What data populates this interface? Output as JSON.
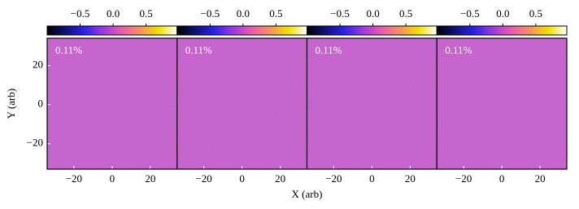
{
  "chart_data": [
    {
      "type": "heatmap",
      "annotation": "0.11%",
      "xlabel": "X (arb)",
      "ylabel": "Y (arb)",
      "xlim": [
        -34,
        34
      ],
      "xticks": [
        {
          "value": -20,
          "label": "−20"
        },
        0,
        20
      ],
      "ylim": [
        -33,
        34
      ],
      "yticks": [
        {
          "value": -20,
          "label": "−20"
        },
        0,
        20
      ],
      "clim": [
        -1.0,
        0.97
      ],
      "cticks": [
        {
          "value": -0.5,
          "label": "−0.5"
        },
        {
          "value": 0,
          "label": "0.0"
        },
        0.5
      ],
      "colormap": [
        "#000000",
        "#10107a",
        "#2a22e8",
        "#9a3ae0",
        "#e85ab0",
        "#f89060",
        "#f0e000",
        "#ffffff"
      ],
      "fill_color": "#b646c6"
    },
    {
      "type": "heatmap",
      "annotation": "0.11%",
      "xlim": [
        -34,
        34
      ],
      "xticks": [
        {
          "value": -20,
          "label": "−20"
        },
        0,
        20
      ],
      "clim": [
        -1.0,
        0.97
      ],
      "cticks": [
        {
          "value": -0.5,
          "label": "−0.5"
        },
        {
          "value": 0,
          "label": "0.0"
        },
        0.5
      ],
      "colormap": [
        "#000000",
        "#10107a",
        "#2a22e8",
        "#9a3ae0",
        "#e85ab0",
        "#f89060",
        "#f0e000",
        "#ffffff"
      ],
      "fill_color": "#b646c6"
    },
    {
      "type": "heatmap",
      "annotation": "0.11%",
      "xlim": [
        -34,
        34
      ],
      "xticks": [
        {
          "value": -20,
          "label": "−20"
        },
        0,
        20
      ],
      "clim": [
        -1.0,
        0.97
      ],
      "cticks": [
        {
          "value": -0.5,
          "label": "−0.5"
        },
        {
          "value": 0,
          "label": "0.0"
        },
        0.5
      ],
      "colormap": [
        "#000000",
        "#10107a",
        "#2a22e8",
        "#9a3ae0",
        "#e85ab0",
        "#f89060",
        "#f0e000",
        "#ffffff"
      ],
      "fill_color": "#b646c6"
    },
    {
      "type": "heatmap",
      "annotation": "0.11%",
      "xlim": [
        -34,
        34
      ],
      "xticks": [
        {
          "value": -20,
          "label": "−20"
        },
        0,
        20
      ],
      "clim": [
        -1.0,
        0.97
      ],
      "cticks": [
        {
          "value": -0.5,
          "label": "−0.5"
        },
        {
          "value": 0,
          "label": "0.0"
        },
        0.5
      ],
      "colormap": [
        "#000000",
        "#10107a",
        "#2a22e8",
        "#9a3ae0",
        "#e85ab0",
        "#f89060",
        "#f0e000",
        "#ffffff"
      ],
      "fill_color": "#b646c6"
    }
  ]
}
